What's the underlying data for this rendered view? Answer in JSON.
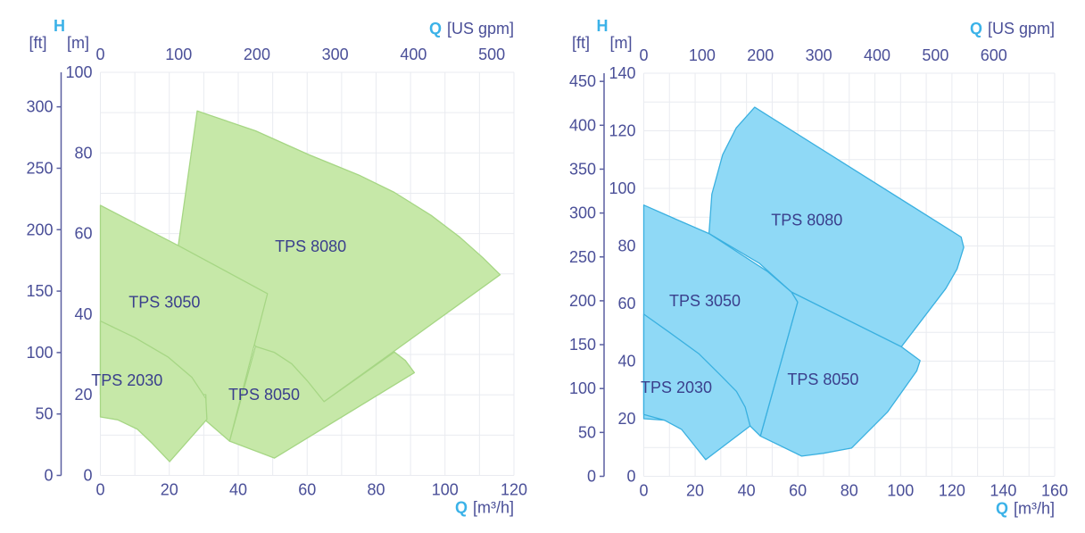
{
  "chart_data": [
    {
      "type": "area",
      "title": "",
      "fill_color": "#c6e8a8",
      "stroke_color": "#a6d684",
      "accent_color": "#3bb2e8",
      "text_color": "#4a4f98",
      "x_axis": {
        "symbol": "Q",
        "unit": "[m³/h]",
        "range": [
          0,
          120
        ],
        "ticks": [
          "0",
          "20",
          "40",
          "60",
          "80",
          "100",
          "120"
        ]
      },
      "x2_axis": {
        "symbol": "Q",
        "unit": "[US gpm]",
        "ticks": [
          "0",
          "100",
          "200",
          "300",
          "400",
          "500"
        ]
      },
      "y_axis": {
        "symbol": "H",
        "unit": "[m]",
        "range": [
          0,
          100
        ],
        "ticks": [
          "0",
          "20",
          "40",
          "60",
          "80",
          "100"
        ]
      },
      "y2_axis": {
        "unit": "[ft]",
        "ticks": [
          "0",
          "50",
          "100",
          "150",
          "200",
          "250",
          "300"
        ]
      },
      "grid": true,
      "series": [
        {
          "name": "TPS 8080",
          "label_at": [
            61,
            56.8
          ],
          "polygon": [
            [
              22.6,
              57
            ],
            [
              28.1,
              90.4
            ],
            [
              45,
              85.5
            ],
            [
              60.4,
              79.6
            ],
            [
              75,
              74.5
            ],
            [
              85.3,
              70.2
            ],
            [
              96,
              64.5
            ],
            [
              104.3,
              59.1
            ],
            [
              111,
              54
            ],
            [
              116,
              49.8
            ],
            [
              64.9,
              18.3
            ],
            [
              55.5,
              25.5
            ],
            [
              45,
              32
            ],
            [
              40,
              40
            ]
          ]
        },
        {
          "name": "TPS 8050",
          "label_at": [
            47.5,
            20
          ],
          "polygon": [
            [
              45,
              32
            ],
            [
              50.5,
              30.5
            ],
            [
              55.5,
              27.7
            ],
            [
              60,
              23.5
            ],
            [
              64.9,
              18.3
            ],
            [
              85.3,
              30.6
            ],
            [
              88.5,
              28.5
            ],
            [
              91.1,
              25.5
            ],
            [
              50.5,
              4.3
            ],
            [
              37.5,
              8.5
            ]
          ]
        },
        {
          "name": "TPS 3050",
          "label_at": [
            18.6,
            43
          ],
          "polygon": [
            [
              0,
              67
            ],
            [
              22.6,
              57
            ],
            [
              48.5,
              45.1
            ],
            [
              37.5,
              8.5
            ],
            [
              30.6,
              13.6
            ],
            [
              30.6,
              20
            ],
            [
              0,
              20
            ]
          ]
        },
        {
          "name": "TPS 2030",
          "label_at": [
            7.7,
            23.6
          ],
          "polygon": [
            [
              0,
              38.3
            ],
            [
              10,
              34.2
            ],
            [
              19.6,
              29.4
            ],
            [
              26.6,
              24.3
            ],
            [
              30.6,
              19.1
            ],
            [
              30.9,
              13.9
            ],
            [
              20.1,
              3.4
            ],
            [
              15,
              8
            ],
            [
              10.7,
              11.5
            ],
            [
              5,
              13.8
            ],
            [
              0,
              14.5
            ]
          ]
        }
      ]
    },
    {
      "type": "area",
      "title": "",
      "fill_color": "#8fd9f6",
      "stroke_color": "#3ab0e0",
      "accent_color": "#3bb2e8",
      "text_color": "#4a4f98",
      "x_axis": {
        "symbol": "Q",
        "unit": "[m³/h]",
        "range": [
          0,
          160
        ],
        "ticks": [
          "0",
          "20",
          "40",
          "60",
          "80",
          "100",
          "120",
          "140",
          "160"
        ]
      },
      "x2_axis": {
        "symbol": "Q",
        "unit": "[US gpm]",
        "ticks": [
          "0",
          "100",
          "200",
          "300",
          "400",
          "500",
          "600"
        ]
      },
      "y_axis": {
        "symbol": "H",
        "unit": "[m]",
        "range": [
          0,
          140
        ],
        "ticks": [
          "0",
          "20",
          "40",
          "60",
          "80",
          "100",
          "120",
          "140"
        ]
      },
      "y2_axis": {
        "unit": "[ft]",
        "ticks": [
          "0",
          "50",
          "100",
          "150",
          "200",
          "250",
          "300",
          "350",
          "400",
          "450"
        ]
      },
      "grid": true,
      "series": [
        {
          "name": "TPS 8080",
          "label_at": [
            63.5,
            89
          ],
          "polygon": [
            [
              25.4,
              84.3
            ],
            [
              26.5,
              98
            ],
            [
              30.7,
              111.7
            ],
            [
              36,
              121
            ],
            [
              43.2,
              128.2
            ],
            [
              123.6,
              83.1
            ],
            [
              124.6,
              79.5
            ],
            [
              122,
              72
            ],
            [
              117.6,
              65.2
            ],
            [
              100.3,
              45
            ],
            [
              57.5,
              64
            ],
            [
              45,
              74
            ]
          ]
        },
        {
          "name": "TPS 8050",
          "label_at": [
            69.8,
            33.6
          ],
          "polygon": [
            [
              57.5,
              64
            ],
            [
              100.3,
              45
            ],
            [
              107.6,
              40.2
            ],
            [
              106.3,
              36.6
            ],
            [
              94.9,
              22.3
            ],
            [
              80.9,
              9.8
            ],
            [
              70,
              8
            ],
            [
              61.5,
              7
            ],
            [
              45.4,
              14
            ],
            [
              59.9,
              60.5
            ]
          ]
        },
        {
          "name": "TPS 3050",
          "label_at": [
            23.8,
            61
          ],
          "polygon": [
            [
              0,
              94.2
            ],
            [
              12,
              89.5
            ],
            [
              25.4,
              84.3
            ],
            [
              48.1,
              71.2
            ],
            [
              57.5,
              64
            ],
            [
              59.9,
              60.5
            ],
            [
              45.4,
              14
            ],
            [
              41.4,
              17.5
            ],
            [
              0,
              20
            ]
          ]
        },
        {
          "name": "TPS 2030",
          "label_at": [
            12.7,
            30.9
          ],
          "polygon": [
            [
              0,
              56.3
            ],
            [
              10,
              50
            ],
            [
              21.4,
              42.6
            ],
            [
              30,
              35
            ],
            [
              36.1,
              29.5
            ],
            [
              39.5,
              24
            ],
            [
              41.4,
              17.5
            ],
            [
              24.1,
              5.8
            ],
            [
              19,
              11.5
            ],
            [
              14.7,
              16.3
            ],
            [
              8,
              19.5
            ],
            [
              0,
              21.5
            ]
          ]
        }
      ]
    }
  ]
}
